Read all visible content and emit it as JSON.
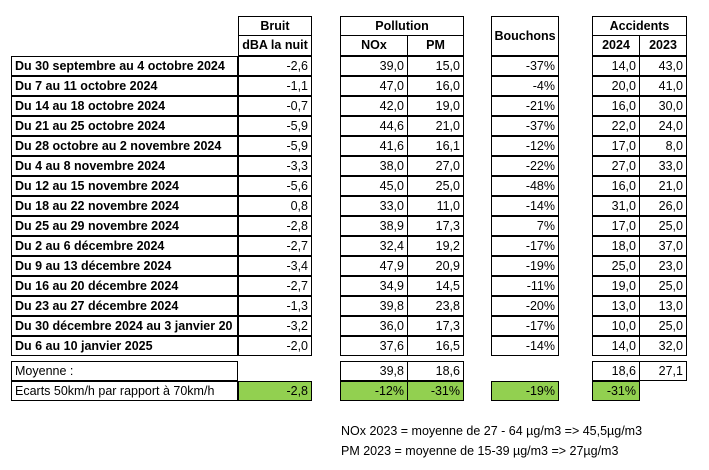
{
  "headers": {
    "bruit": "Bruit",
    "bruit_unit": "dBA la nuit",
    "pollution": "Pollution",
    "nox": "NOx",
    "pm": "PM",
    "bouchons": "Bouchons",
    "accidents": "Accidents",
    "y2024": "2024",
    "y2023": "2023"
  },
  "rows": [
    {
      "period": "Du 30 septembre au 4 octobre 2024",
      "bruit": "-2,6",
      "nox": "39,0",
      "pm": "15,0",
      "bouchons": "-37%",
      "acc2024": "14,0",
      "acc2023": "43,0"
    },
    {
      "period": "Du 7 au 11 octobre 2024",
      "bruit": "-1,1",
      "nox": "47,0",
      "pm": "16,0",
      "bouchons": "-4%",
      "acc2024": "20,0",
      "acc2023": "41,0"
    },
    {
      "period": "Du 14 au 18 octobre 2024",
      "bruit": "-0,7",
      "nox": "42,0",
      "pm": "19,0",
      "bouchons": "-21%",
      "acc2024": "16,0",
      "acc2023": "30,0"
    },
    {
      "period": "Du 21 au 25 octobre 2024",
      "bruit": "-5,9",
      "nox": "44,6",
      "pm": "21,0",
      "bouchons": "-37%",
      "acc2024": "22,0",
      "acc2023": "24,0"
    },
    {
      "period": "Du 28 octobre au 2 novembre 2024",
      "bruit": "-5,9",
      "nox": "41,6",
      "pm": "16,1",
      "bouchons": "-12%",
      "acc2024": "17,0",
      "acc2023": "8,0"
    },
    {
      "period": "Du 4 au 8 novembre 2024",
      "bruit": "-3,3",
      "nox": "38,0",
      "pm": "27,0",
      "bouchons": "-22%",
      "acc2024": "27,0",
      "acc2023": "33,0"
    },
    {
      "period": "Du 12 au 15 novembre 2024",
      "bruit": "-5,6",
      "nox": "45,0",
      "pm": "25,0",
      "bouchons": "-48%",
      "acc2024": "16,0",
      "acc2023": "21,0"
    },
    {
      "period": "Du 18 au 22 novembre 2024",
      "bruit": "0,8",
      "nox": "33,0",
      "pm": "11,0",
      "bouchons": "-14%",
      "acc2024": "31,0",
      "acc2023": "26,0"
    },
    {
      "period": "Du 25 au 29 novembre 2024",
      "bruit": "-2,8",
      "nox": "38,9",
      "pm": "17,3",
      "bouchons": "7%",
      "acc2024": "17,0",
      "acc2023": "25,0"
    },
    {
      "period": "Du 2 au 6 décembre 2024",
      "bruit": "-2,7",
      "nox": "32,4",
      "pm": "19,2",
      "bouchons": "-17%",
      "acc2024": "18,0",
      "acc2023": "37,0"
    },
    {
      "period": "Du 9 au 13 décembre 2024",
      "bruit": "-3,4",
      "nox": "47,9",
      "pm": "20,9",
      "bouchons": "-19%",
      "acc2024": "25,0",
      "acc2023": "23,0"
    },
    {
      "period": "Du 16 au 20 décembre 2024",
      "bruit": "-2,7",
      "nox": "34,9",
      "pm": "14,5",
      "bouchons": "-11%",
      "acc2024": "19,0",
      "acc2023": "25,0"
    },
    {
      "period": "Du 23 au 27 décembre 2024",
      "bruit": "-1,3",
      "nox": "39,8",
      "pm": "23,8",
      "bouchons": "-20%",
      "acc2024": "13,0",
      "acc2023": "13,0"
    },
    {
      "period": "Du 30 décembre 2024 au 3 janvier 20",
      "bruit": "-3,2",
      "nox": "36,0",
      "pm": "17,3",
      "bouchons": "-17%",
      "acc2024": "10,0",
      "acc2023": "25,0"
    },
    {
      "period": "Du 6 au 10 janvier 2025",
      "bruit": "-2,0",
      "nox": "37,6",
      "pm": "16,5",
      "bouchons": "-14%",
      "acc2024": "14,0",
      "acc2023": "32,0"
    }
  ],
  "moyenne": {
    "label": "Moyenne :",
    "nox": "39,8",
    "pm": "18,6",
    "acc2024": "18,6",
    "acc2023": "27,1"
  },
  "ecarts": {
    "label": "Ecarts 50km/h par rapport à 70km/h",
    "bruit": "-2,8",
    "nox": "-12%",
    "pm": "-31%",
    "bouchons": "-19%",
    "accidents": "-31%"
  },
  "notes": [
    "NOx 2023 = moyenne de 27 - 64 µg/m3 => 45,5µg/m3",
    "PM 2023 = moyenne de 15-39 µg/m3 => 27µg/m3"
  ],
  "colors": {
    "highlight": "#92d050"
  }
}
